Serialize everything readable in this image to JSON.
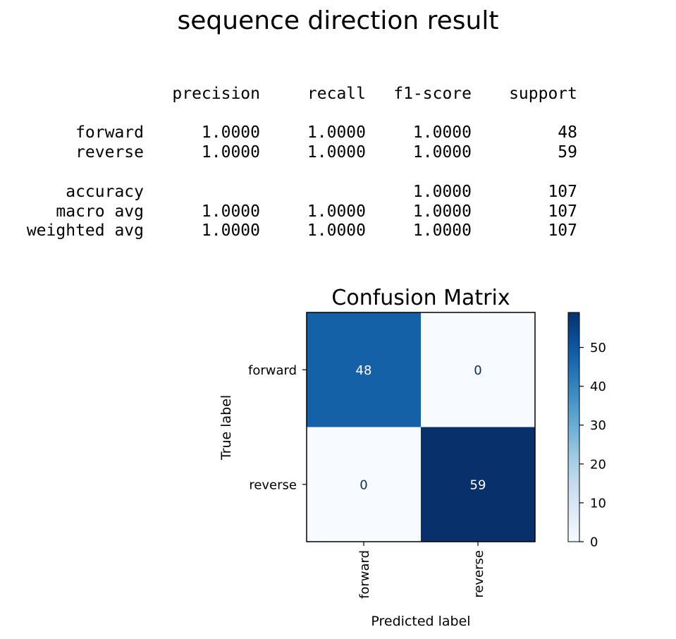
{
  "title": "sequence direction result",
  "report": {
    "header": [
      "precision",
      "recall",
      "f1-score",
      "support"
    ],
    "rows": [
      {
        "label": "forward",
        "precision": "1.0000",
        "recall": "1.0000",
        "f1": "1.0000",
        "support": "48"
      },
      {
        "label": "reverse",
        "precision": "1.0000",
        "recall": "1.0000",
        "f1": "1.0000",
        "support": "59"
      },
      {
        "label": "accuracy",
        "precision": "",
        "recall": "",
        "f1": "1.0000",
        "support": "107"
      },
      {
        "label": "macro avg",
        "precision": "1.0000",
        "recall": "1.0000",
        "f1": "1.0000",
        "support": "107"
      },
      {
        "label": "weighted avg",
        "precision": "1.0000",
        "recall": "1.0000",
        "f1": "1.0000",
        "support": "107"
      }
    ]
  },
  "chart_data": {
    "type": "heatmap",
    "title": "Confusion Matrix",
    "xlabel": "Predicted label",
    "ylabel": "True label",
    "x_categories": [
      "forward",
      "reverse"
    ],
    "y_categories": [
      "forward",
      "reverse"
    ],
    "values": [
      [
        48,
        0
      ],
      [
        0,
        59
      ]
    ],
    "colormap": "Blues",
    "color_range": [
      0,
      59
    ],
    "colorbar_ticks": [
      0,
      10,
      20,
      30,
      40,
      50
    ],
    "colors": {
      "low": "#f7fbff",
      "high": "#08306b",
      "text_dark_bg": "#ffffff",
      "text_light_bg": "#08306b"
    }
  }
}
